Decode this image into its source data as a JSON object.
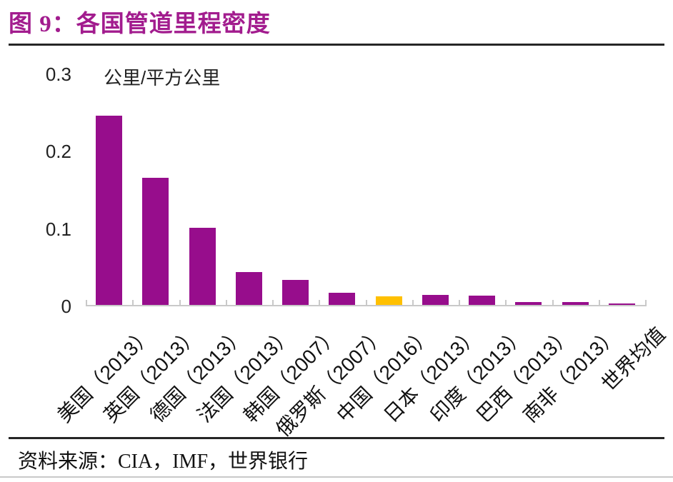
{
  "title": "图 9：各国管道里程密度",
  "unit_label": "公里/平方公里",
  "source_line": "资料来源：CIA，IMF，世界银行",
  "colors": {
    "title": "#A21C8E",
    "bar": "#970D8C",
    "highlight_bar": "#FFC000",
    "axis": "#C9C9C9",
    "divider": "#262626"
  },
  "chart_data": {
    "type": "bar",
    "title": "图 9：各国管道里程密度",
    "ylabel": "公里/平方公里",
    "xlabel": "",
    "ylim": [
      0,
      0.3
    ],
    "yticks": [
      0,
      0.1,
      0.2,
      0.3
    ],
    "ytick_labels": [
      "0",
      "0.1",
      "0.2",
      "0.3"
    ],
    "grid": false,
    "legend": false,
    "categories": [
      "美国（2013）",
      "英国（2013）",
      "德国（2013）",
      "法国（2013）",
      "韩国（2007）",
      "俄罗斯（2007）",
      "中国（2016）",
      "日本（2013）",
      "印度（2013）",
      "巴西（2013）",
      "南非（2013）",
      "世界均值"
    ],
    "values": [
      0.245,
      0.165,
      0.1,
      0.043,
      0.032,
      0.016,
      0.011,
      0.013,
      0.012,
      0.004,
      0.004,
      0.002
    ],
    "highlight_category": "中国（2016）"
  }
}
